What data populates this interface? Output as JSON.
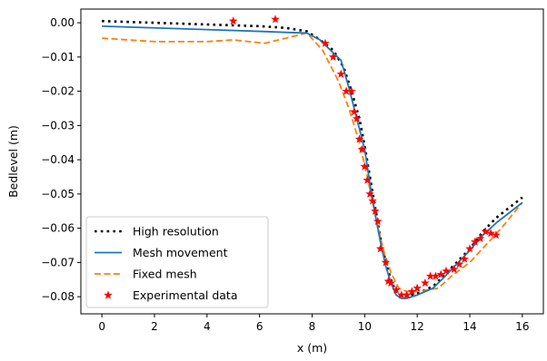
{
  "chart_data": {
    "type": "line",
    "xlabel": "x (m)",
    "ylabel": "Bedlevel (m)",
    "xlim": [
      -0.8,
      16.8
    ],
    "ylim": [
      -0.085,
      0.004
    ],
    "xticks": [
      0,
      2,
      4,
      6,
      8,
      10,
      12,
      14,
      16
    ],
    "yticks": [
      0.0,
      -0.01,
      -0.02,
      -0.03,
      -0.04,
      -0.05,
      -0.06,
      -0.07,
      -0.08
    ],
    "ytick_labels": [
      "0.00",
      "−0.01",
      "−0.02",
      "−0.03",
      "−0.04",
      "−0.05",
      "−0.06",
      "−0.07",
      "−0.08"
    ],
    "grid": false,
    "legend_position": "lower-left",
    "series": [
      {
        "name": "High resolution",
        "style": "dotted",
        "color": "#000000",
        "x": [
          0,
          2,
          4,
          6,
          7,
          7.8,
          8.3,
          8.8,
          9.2,
          9.5,
          9.8,
          10.0,
          10.2,
          10.4,
          10.6,
          10.8,
          11.0,
          11.2,
          11.5,
          12.0,
          12.6,
          13.0,
          13.5,
          14.0,
          14.5,
          15.0,
          15.5,
          16.0
        ],
        "y": [
          0.0005,
          0.0,
          -0.0005,
          -0.001,
          -0.0015,
          -0.0025,
          -0.005,
          -0.008,
          -0.013,
          -0.02,
          -0.028,
          -0.036,
          -0.045,
          -0.054,
          -0.063,
          -0.07,
          -0.075,
          -0.079,
          -0.08,
          -0.079,
          -0.077,
          -0.074,
          -0.07,
          -0.066,
          -0.061,
          -0.057,
          -0.054,
          -0.051
        ]
      },
      {
        "name": "Mesh movement",
        "style": "solid",
        "color": "#1f77b4",
        "x": [
          0,
          2,
          4,
          6,
          7,
          7.8,
          8.3,
          8.7,
          9.1,
          9.4,
          9.7,
          10.0,
          10.2,
          10.4,
          10.6,
          10.8,
          11.0,
          11.2,
          11.4,
          11.6,
          12.0,
          12.6,
          13.0,
          13.5,
          14.0,
          14.5,
          15.0,
          15.5,
          16.0
        ],
        "y": [
          -0.001,
          -0.0015,
          -0.002,
          -0.0025,
          -0.0028,
          -0.003,
          -0.005,
          -0.008,
          -0.011,
          -0.019,
          -0.028,
          -0.037,
          -0.047,
          -0.056,
          -0.064,
          -0.071,
          -0.076,
          -0.0795,
          -0.0805,
          -0.0805,
          -0.0795,
          -0.0775,
          -0.0745,
          -0.0705,
          -0.0665,
          -0.062,
          -0.0585,
          -0.0555,
          -0.0525
        ]
      },
      {
        "name": "Fixed mesh",
        "style": "dashed",
        "color": "#ff7f0e",
        "x": [
          0,
          2,
          4,
          5,
          6.2,
          7.0,
          7.8,
          8.4,
          9.0,
          9.4,
          9.8,
          10.1,
          10.4,
          10.7,
          11.0,
          11.3,
          11.6,
          12.0,
          12.8,
          13.3,
          14.0,
          14.6,
          15.2,
          16.0
        ],
        "y": [
          -0.0045,
          -0.0055,
          -0.0055,
          -0.005,
          -0.006,
          -0.0045,
          -0.003,
          -0.008,
          -0.017,
          -0.025,
          -0.035,
          -0.045,
          -0.056,
          -0.066,
          -0.073,
          -0.0775,
          -0.0785,
          -0.0785,
          -0.0775,
          -0.074,
          -0.07,
          -0.065,
          -0.06,
          -0.0525
        ]
      },
      {
        "name": "Experimental data",
        "style": "markers",
        "marker": "star",
        "color": "#ff0000",
        "x": [
          5.0,
          6.6,
          8.5,
          8.8,
          9.1,
          9.3,
          9.5,
          9.6,
          9.7,
          9.8,
          9.9,
          10.0,
          10.1,
          10.2,
          10.3,
          10.4,
          10.5,
          10.6,
          10.8,
          10.9,
          11.0,
          11.2,
          11.4,
          11.6,
          11.8,
          12.0,
          12.3,
          12.5,
          12.7,
          12.9,
          13.1,
          13.4,
          13.6,
          13.8,
          14.0,
          14.2,
          14.4,
          14.6,
          14.8,
          15.0
        ],
        "y": [
          0.0005,
          0.001,
          -0.006,
          -0.01,
          -0.015,
          -0.02,
          -0.02,
          -0.026,
          -0.028,
          -0.034,
          -0.037,
          -0.042,
          -0.046,
          -0.05,
          -0.052,
          -0.055,
          -0.058,
          -0.066,
          -0.07,
          -0.0755,
          -0.076,
          -0.078,
          -0.0795,
          -0.0795,
          -0.0785,
          -0.0775,
          -0.076,
          -0.074,
          -0.074,
          -0.0735,
          -0.0725,
          -0.072,
          -0.0705,
          -0.069,
          -0.066,
          -0.064,
          -0.063,
          -0.061,
          -0.0615,
          -0.062
        ]
      }
    ]
  }
}
